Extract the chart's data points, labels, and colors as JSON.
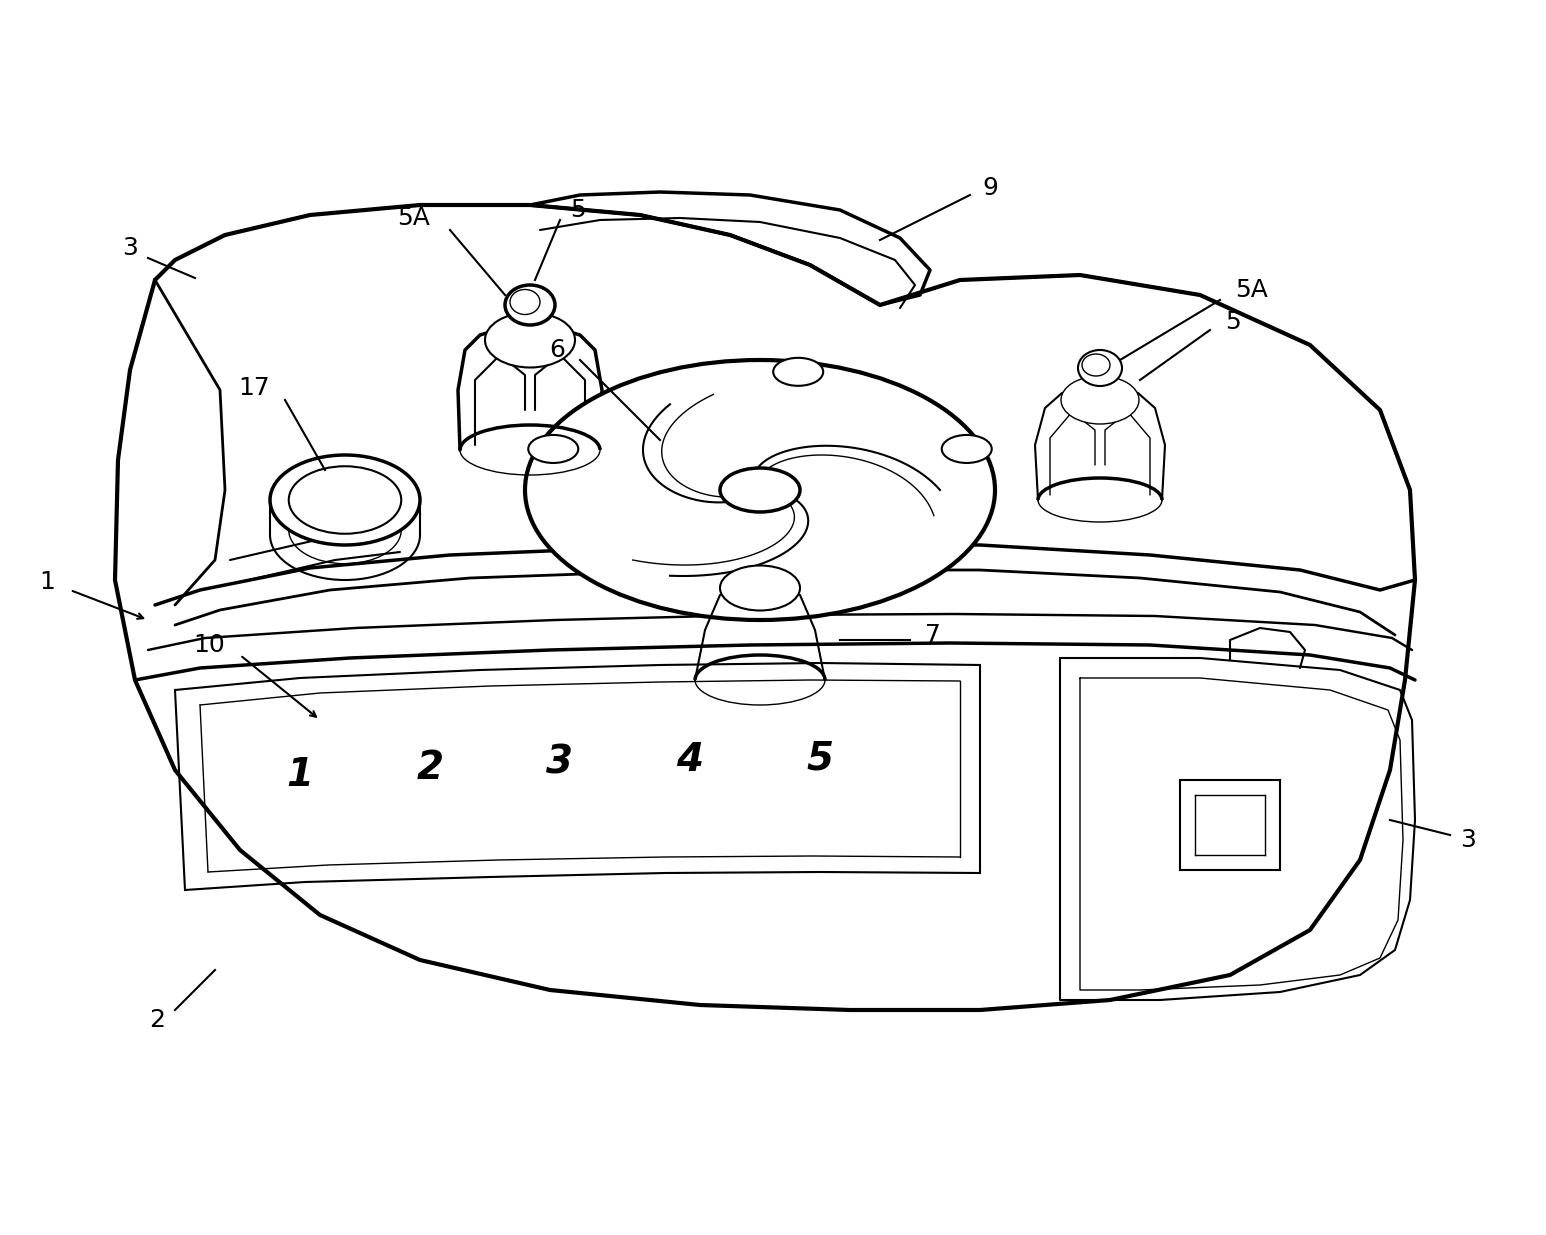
{
  "bg_color": "#ffffff",
  "line_color": "#000000",
  "lw_main": 2.5,
  "lw_detail": 1.5,
  "lw_thin": 1.0,
  "font_size_label": 18,
  "font_size_num": 28
}
